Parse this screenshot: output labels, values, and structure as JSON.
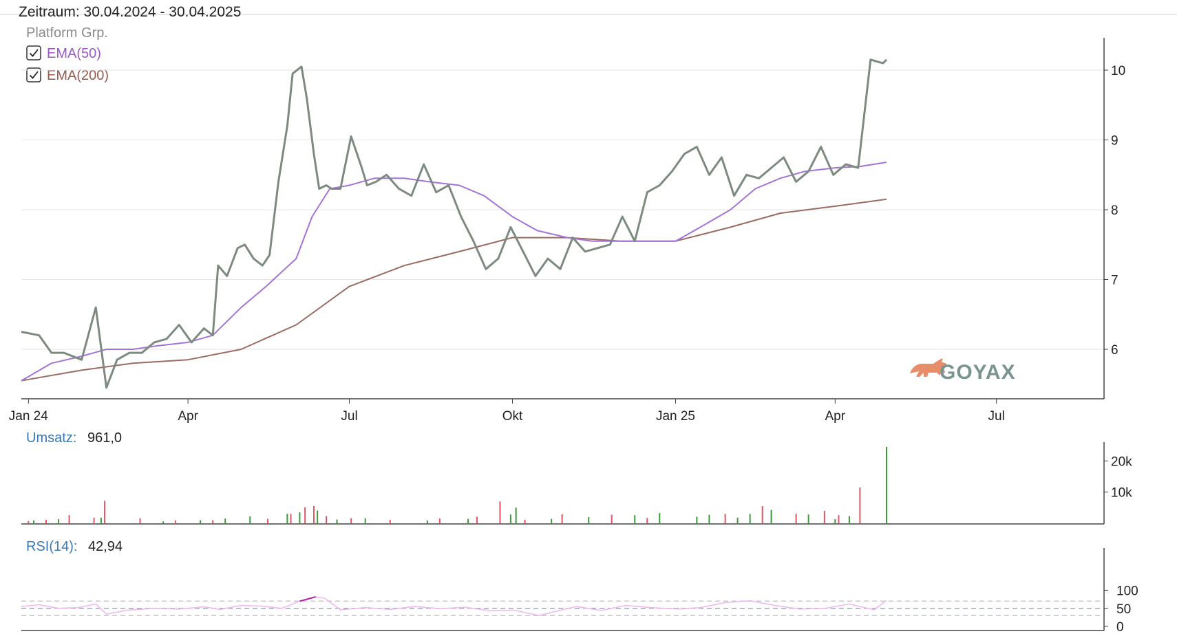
{
  "header": {
    "zeitraum": "Zeitraum: 30.04.2024 - 30.04.2025"
  },
  "legend": {
    "title": "Platform Grp.",
    "items": [
      {
        "label": "EMA(50)",
        "color": "#9b59c7",
        "checked": true
      },
      {
        "label": "EMA(200)",
        "color": "#9a5a4c",
        "checked": true
      }
    ]
  },
  "watermark": {
    "text": "GOYAX",
    "icon": "bull-icon"
  },
  "colors": {
    "price": "#7c8a7f",
    "ema50": "#a473d6",
    "ema200": "#9a6b61",
    "grid": "#e6e6e6",
    "axis": "#444444",
    "vol_up": "#3a9a3a",
    "vol_down": "#e05565",
    "rsi": "#f0b8f0",
    "rsi_hi": "#b020b0",
    "info_label": "#3a7ab8"
  },
  "volume_info": {
    "label": "Umsatz:",
    "value": "961,0"
  },
  "rsi_info": {
    "label": "RSI(14):",
    "value": "42,94"
  },
  "chart_data": [
    {
      "type": "line",
      "title": "Platform Grp.",
      "x_ticks": [
        "Jan 24",
        "Apr",
        "Jul",
        "Okt",
        "Jan 25",
        "Apr",
        "Jul"
      ],
      "y_ticks": [
        "6",
        "7",
        "8",
        "9",
        "10"
      ],
      "ylim": [
        5.3,
        10.5
      ],
      "grid": true,
      "series": [
        {
          "name": "Platform Grp.",
          "x": [
            "2023-12-29",
            "2024-01-08",
            "2024-01-15",
            "2024-01-22",
            "2024-02-01",
            "2024-02-09",
            "2024-02-15",
            "2024-02-21",
            "2024-02-28",
            "2024-03-06",
            "2024-03-13",
            "2024-03-20",
            "2024-03-27",
            "2024-04-03",
            "2024-04-10",
            "2024-04-15",
            "2024-04-18",
            "2024-04-23",
            "2024-04-29",
            "2024-05-03",
            "2024-05-08",
            "2024-05-13",
            "2024-05-17",
            "2024-05-22",
            "2024-05-27",
            "2024-05-30",
            "2024-06-04",
            "2024-06-07",
            "2024-06-11",
            "2024-06-14",
            "2024-06-18",
            "2024-06-21",
            "2024-06-26",
            "2024-07-02",
            "2024-07-08",
            "2024-07-11",
            "2024-07-16",
            "2024-07-22",
            "2024-07-29",
            "2024-08-05",
            "2024-08-12",
            "2024-08-19",
            "2024-08-26",
            "2024-09-02",
            "2024-09-09",
            "2024-09-16",
            "2024-09-23",
            "2024-09-30",
            "2024-10-07",
            "2024-10-14",
            "2024-10-21",
            "2024-10-28",
            "2024-11-04",
            "2024-11-11",
            "2024-11-18",
            "2024-11-25",
            "2024-12-02",
            "2024-12-09",
            "2024-12-16",
            "2024-12-23",
            "2024-12-30",
            "2025-01-06",
            "2025-01-13",
            "2025-01-20",
            "2025-01-27",
            "2025-02-03",
            "2025-02-10",
            "2025-02-17",
            "2025-02-24",
            "2025-03-03",
            "2025-03-10",
            "2025-03-17",
            "2025-03-24",
            "2025-03-31",
            "2025-04-07",
            "2025-04-14",
            "2025-04-21",
            "2025-04-28",
            "2025-04-30"
          ],
          "values": [
            6.25,
            6.2,
            5.95,
            5.95,
            5.85,
            6.6,
            5.45,
            5.85,
            5.95,
            5.95,
            6.1,
            6.15,
            6.35,
            6.1,
            6.3,
            6.2,
            7.2,
            7.05,
            7.45,
            7.5,
            7.3,
            7.2,
            7.35,
            8.4,
            9.2,
            9.95,
            10.05,
            9.6,
            8.8,
            8.3,
            8.35,
            8.3,
            8.3,
            9.05,
            8.6,
            8.35,
            8.4,
            8.5,
            8.3,
            8.2,
            8.65,
            8.25,
            8.35,
            7.9,
            7.55,
            7.15,
            7.3,
            7.75,
            7.4,
            7.05,
            7.3,
            7.15,
            7.6,
            7.4,
            7.45,
            7.5,
            7.9,
            7.55,
            8.25,
            8.35,
            8.55,
            8.8,
            8.9,
            8.5,
            8.75,
            8.2,
            8.5,
            8.45,
            8.6,
            8.75,
            8.4,
            8.55,
            8.9,
            8.5,
            8.65,
            8.6,
            10.15,
            10.1,
            10.15
          ],
          "color": "#7c8a7f"
        },
        {
          "name": "EMA(50)",
          "x": [
            "2023-12-29",
            "2024-01-15",
            "2024-02-01",
            "2024-02-15",
            "2024-03-01",
            "2024-03-15",
            "2024-04-01",
            "2024-04-15",
            "2024-05-01",
            "2024-05-15",
            "2024-06-01",
            "2024-06-10",
            "2024-06-20",
            "2024-07-01",
            "2024-07-15",
            "2024-08-01",
            "2024-08-15",
            "2024-09-01",
            "2024-09-15",
            "2024-10-01",
            "2024-10-15",
            "2024-11-01",
            "2024-11-15",
            "2024-12-01",
            "2024-12-15",
            "2025-01-01",
            "2025-01-15",
            "2025-02-01",
            "2025-02-15",
            "2025-03-01",
            "2025-03-15",
            "2025-04-01",
            "2025-04-15",
            "2025-04-30"
          ],
          "values": [
            5.55,
            5.8,
            5.9,
            6.0,
            6.0,
            6.05,
            6.1,
            6.2,
            6.6,
            6.9,
            7.3,
            7.9,
            8.3,
            8.35,
            8.45,
            8.45,
            8.4,
            8.35,
            8.2,
            7.9,
            7.7,
            7.6,
            7.55,
            7.55,
            7.55,
            7.55,
            7.75,
            8.0,
            8.3,
            8.45,
            8.55,
            8.6,
            8.62,
            8.68
          ],
          "color": "#a473d6"
        },
        {
          "name": "EMA(200)",
          "x": [
            "2023-12-29",
            "2024-02-01",
            "2024-03-01",
            "2024-04-01",
            "2024-05-01",
            "2024-06-01",
            "2024-07-01",
            "2024-08-01",
            "2024-09-01",
            "2024-10-01",
            "2024-11-01",
            "2024-12-01",
            "2025-01-01",
            "2025-02-01",
            "2025-03-01",
            "2025-04-01",
            "2025-04-30"
          ],
          "values": [
            5.55,
            5.7,
            5.8,
            5.85,
            6.0,
            6.35,
            6.9,
            7.2,
            7.4,
            7.6,
            7.6,
            7.55,
            7.55,
            7.75,
            7.95,
            8.05,
            8.15
          ],
          "color": "#9a6b61"
        }
      ]
    },
    {
      "type": "bar",
      "title": "Umsatz",
      "y_ticks": [
        "10k",
        "20k"
      ],
      "ylim": [
        0,
        25000
      ],
      "series": [
        {
          "name": "up",
          "x": [
            "2024-01-05",
            "2024-01-19",
            "2024-02-12",
            "2024-03-18",
            "2024-04-08",
            "2024-04-22",
            "2024-05-06",
            "2024-05-27",
            "2024-06-03",
            "2024-06-13",
            "2024-06-24",
            "2024-07-10",
            "2024-08-14",
            "2024-09-06",
            "2024-09-30",
            "2024-10-03",
            "2024-10-23",
            "2024-11-13",
            "2024-12-09",
            "2024-12-23",
            "2025-01-13",
            "2025-01-20",
            "2025-02-05",
            "2025-02-12",
            "2025-02-24",
            "2025-03-17",
            "2025-04-01",
            "2025-04-09",
            "2025-04-30"
          ],
          "values": [
            900,
            1300,
            1800,
            600,
            1000,
            1500,
            2200,
            3000,
            3500,
            4100,
            1200,
            1600,
            900,
            1400,
            2800,
            5000,
            1400,
            2000,
            2600,
            3300,
            2100,
            2700,
            1800,
            3000,
            4300,
            2800,
            1300,
            2300,
            24500
          ]
        },
        {
          "name": "down",
          "x": [
            "2024-01-02",
            "2024-01-12",
            "2024-01-25",
            "2024-02-08",
            "2024-02-14",
            "2024-03-05",
            "2024-03-25",
            "2024-04-15",
            "2024-05-16",
            "2024-05-29",
            "2024-06-06",
            "2024-06-11",
            "2024-06-18",
            "2024-07-02",
            "2024-07-24",
            "2024-08-21",
            "2024-09-11",
            "2024-09-24",
            "2024-10-08",
            "2024-10-29",
            "2024-11-26",
            "2024-12-16",
            "2025-01-29",
            "2025-02-19",
            "2025-03-10",
            "2025-03-26",
            "2025-04-03",
            "2025-04-15"
          ],
          "values": [
            700,
            1100,
            2600,
            1800,
            7200,
            1600,
            900,
            1000,
            1400,
            3000,
            5100,
            5500,
            2300,
            1600,
            1100,
            1500,
            2100,
            7000,
            1100,
            2900,
            2700,
            1700,
            3000,
            5500,
            3000,
            4000,
            2600,
            11500
          ]
        }
      ]
    },
    {
      "type": "line",
      "title": "RSI(14)",
      "y_ticks": [
        "0",
        "50",
        "100"
      ],
      "ylim": [
        0,
        100
      ],
      "reference_lines": [
        30,
        50,
        70
      ],
      "series": [
        {
          "name": "RSI(14)",
          "x": [
            "2023-12-29",
            "2024-01-08",
            "2024-01-19",
            "2024-01-30",
            "2024-02-09",
            "2024-02-15",
            "2024-02-27",
            "2024-03-12",
            "2024-03-27",
            "2024-04-10",
            "2024-04-19",
            "2024-05-01",
            "2024-05-13",
            "2024-05-24",
            "2024-06-03",
            "2024-06-07",
            "2024-06-12",
            "2024-06-17",
            "2024-06-26",
            "2024-07-10",
            "2024-07-24",
            "2024-08-07",
            "2024-08-21",
            "2024-09-04",
            "2024-09-18",
            "2024-10-02",
            "2024-10-16",
            "2024-10-24",
            "2024-11-06",
            "2024-11-20",
            "2024-12-04",
            "2024-12-18",
            "2025-01-03",
            "2025-01-15",
            "2025-01-29",
            "2025-02-12",
            "2025-02-26",
            "2025-03-12",
            "2025-03-26",
            "2025-04-09",
            "2025-04-23",
            "2025-04-30"
          ],
          "values": [
            55,
            60,
            50,
            52,
            62,
            34,
            45,
            50,
            48,
            54,
            47,
            58,
            56,
            50,
            70,
            75,
            82,
            78,
            46,
            52,
            47,
            55,
            49,
            53,
            44,
            45,
            30,
            40,
            55,
            44,
            58,
            52,
            48,
            52,
            66,
            71,
            58,
            48,
            50,
            62,
            46,
            72
          ],
          "color": "#f0b8f0"
        }
      ]
    }
  ]
}
